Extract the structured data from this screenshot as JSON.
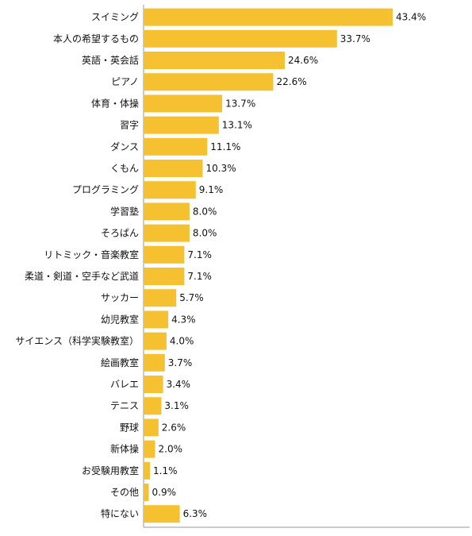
{
  "chart_data": {
    "type": "bar",
    "orientation": "horizontal",
    "categories": [
      "スイミング",
      "本人の希望するもの",
      "英語・英会話",
      "ピアノ",
      "体育・体操",
      "習字",
      "ダンス",
      "くもん",
      "プログラミング",
      "学習塾",
      "そろばん",
      "リトミック・音楽教室",
      "柔道・剣道・空手など武道",
      "サッカー",
      "幼児教室",
      "サイエンス（科学実験教室）",
      "絵画教室",
      "バレエ",
      "テニス",
      "野球",
      "新体操",
      "お受験用教室",
      "その他",
      "特にない"
    ],
    "values": [
      43.4,
      33.7,
      24.6,
      22.6,
      13.7,
      13.1,
      11.1,
      10.3,
      9.1,
      8.0,
      8.0,
      7.1,
      7.1,
      5.7,
      4.3,
      4.0,
      3.7,
      3.4,
      3.1,
      2.6,
      2.0,
      1.1,
      0.9,
      6.3
    ],
    "value_labels": [
      "43.4%",
      "33.7%",
      "24.6%",
      "22.6%",
      "13.7%",
      "13.1%",
      "11.1%",
      "10.3%",
      "9.1%",
      "8.0%",
      "8.0%",
      "7.1%",
      "7.1%",
      "5.7%",
      "4.3%",
      "4.0%",
      "3.7%",
      "3.4%",
      "3.1%",
      "2.6%",
      "2.0%",
      "1.1%",
      "0.9%",
      "6.3%"
    ],
    "title": "",
    "xlabel": "",
    "ylabel": "",
    "xlim": [
      0,
      50
    ],
    "grid": false,
    "colors": {
      "bar": "#f5c131",
      "axis": "#999999",
      "text": "#111111"
    }
  }
}
